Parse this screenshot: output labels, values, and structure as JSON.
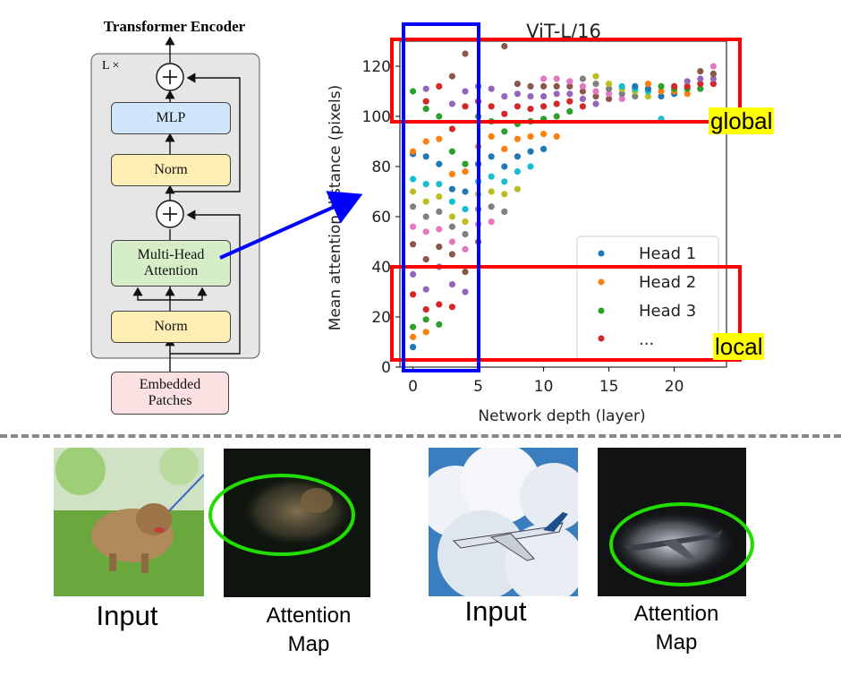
{
  "encoder": {
    "title": "Transformer Encoder",
    "repeat": "L ×",
    "blocks": {
      "mlp": "MLP",
      "norm_top": "Norm",
      "attention_line1": "Multi-Head",
      "attention_line2": "Attention",
      "norm_bottom": "Norm",
      "embedded_line1": "Embedded",
      "embedded_line2": "Patches"
    },
    "colors": {
      "panel": "#e6e6e6",
      "mlp": "#cfe6fb",
      "norm": "#fdeeb3",
      "attention": "#d6eec8",
      "embedded": "#fbe1e1"
    }
  },
  "tags": {
    "global": "global",
    "local": "local"
  },
  "highlight_colors": {
    "region": "#ff0000",
    "layers": "#0000ff",
    "attention": "#22dd00"
  },
  "chart_data": {
    "type": "scatter",
    "title": "ViT-L/16",
    "xlabel": "Network depth (layer)",
    "ylabel": "Mean attention distance (pixels)",
    "xlim": [
      -1,
      24
    ],
    "ylim": [
      0,
      130
    ],
    "xticks": [
      0,
      5,
      10,
      15,
      20
    ],
    "yticks": [
      0,
      20,
      40,
      60,
      80,
      100,
      120
    ],
    "legend": {
      "placement": "lower-right",
      "entries": [
        "Head 1",
        "Head 2",
        "Head 3",
        "..."
      ],
      "colors": [
        "#1f77b4",
        "#ff7f0e",
        "#2ca02c",
        "#d62728"
      ]
    },
    "layers": [
      {
        "x": 0,
        "y": [
          8,
          12,
          16,
          29,
          37,
          49,
          56,
          64,
          70,
          75,
          85,
          86,
          110
        ]
      },
      {
        "x": 1,
        "y": [
          14,
          19,
          23,
          31,
          43,
          54,
          60,
          66,
          73,
          84,
          90,
          103,
          106,
          111
        ]
      },
      {
        "x": 2,
        "y": [
          17,
          25,
          40,
          48,
          55,
          62,
          68,
          73,
          81,
          91,
          100,
          112
        ]
      },
      {
        "x": 3,
        "y": [
          24,
          33,
          45,
          50,
          56,
          60,
          66,
          71,
          77,
          86,
          95,
          105,
          116
        ]
      },
      {
        "x": 4,
        "y": [
          30,
          38,
          47,
          53,
          58,
          63,
          70,
          78,
          81,
          104,
          110,
          125
        ]
      },
      {
        "x": 5,
        "y": [
          50,
          57,
          63,
          69,
          74,
          81,
          88,
          100,
          106,
          112
        ]
      },
      {
        "x": 6,
        "y": [
          58,
          64,
          70,
          76,
          84,
          92,
          98,
          104,
          111
        ]
      },
      {
        "x": 7,
        "y": [
          62,
          69,
          74,
          80,
          87,
          94,
          101,
          108,
          128
        ]
      },
      {
        "x": 8,
        "y": [
          71,
          78,
          84,
          91,
          97,
          104,
          109,
          113
        ]
      },
      {
        "x": 9,
        "y": [
          80,
          86,
          92,
          98,
          103,
          108,
          112
        ]
      },
      {
        "x": 10,
        "y": [
          87,
          93,
          99,
          104,
          108,
          112,
          115
        ]
      },
      {
        "x": 11,
        "y": [
          92,
          100,
          105,
          109,
          112,
          115
        ]
      },
      {
        "x": 12,
        "y": [
          102,
          106,
          109,
          112,
          114
        ]
      },
      {
        "x": 13,
        "y": [
          104,
          107,
          110,
          112,
          115
        ]
      },
      {
        "x": 14,
        "y": [
          105,
          108,
          110,
          113,
          116
        ]
      },
      {
        "x": 15,
        "y": [
          107,
          109,
          111,
          113
        ]
      },
      {
        "x": 16,
        "y": [
          107,
          109,
          111,
          112
        ]
      },
      {
        "x": 17,
        "y": [
          108,
          110,
          111,
          112
        ]
      },
      {
        "x": 18,
        "y": [
          108,
          110,
          111,
          113
        ]
      },
      {
        "x": 19,
        "y": [
          99,
          108,
          110,
          112
        ]
      },
      {
        "x": 20,
        "y": [
          109,
          110,
          111,
          112
        ]
      },
      {
        "x": 21,
        "y": [
          109,
          111,
          112,
          114
        ]
      },
      {
        "x": 22,
        "y": [
          111,
          113,
          115,
          118
        ]
      },
      {
        "x": 23,
        "y": [
          113,
          115,
          117,
          120
        ]
      }
    ]
  },
  "gallery": {
    "left_input": "Input",
    "left_map_line1": "Attention",
    "left_map_line2": "Map",
    "right_input": "Input",
    "right_map_line1": "Attention",
    "right_map_line2": "Map"
  }
}
